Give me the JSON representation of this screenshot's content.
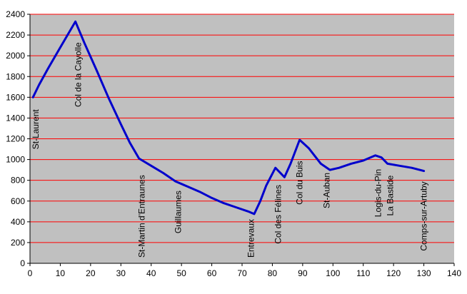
{
  "chart_data": {
    "type": "line",
    "title": "",
    "xlabel": "",
    "ylabel": "",
    "xlim": [
      0,
      140
    ],
    "ylim": [
      0,
      2400
    ],
    "x_ticks": [
      0,
      10,
      20,
      30,
      40,
      50,
      60,
      70,
      80,
      90,
      100,
      110,
      120,
      130,
      140
    ],
    "y_ticks": [
      0,
      200,
      400,
      600,
      800,
      1000,
      1200,
      1400,
      1600,
      1800,
      2000,
      2200,
      2400
    ],
    "grid": "horizontal",
    "legend": "none",
    "series": [
      {
        "x": [
          1,
          3,
          6,
          10,
          15,
          18,
          22,
          26,
          30,
          33,
          36,
          40,
          44,
          48,
          52,
          56,
          60,
          64,
          68,
          72,
          74,
          76,
          78,
          81,
          84,
          86,
          89,
          92,
          96,
          99,
          102,
          106,
          110,
          114,
          116,
          118,
          122,
          126,
          130
        ],
        "y": [
          1600,
          1720,
          1880,
          2080,
          2330,
          2120,
          1860,
          1590,
          1340,
          1160,
          1010,
          940,
          870,
          790,
          740,
          690,
          630,
          580,
          540,
          500,
          475,
          600,
          750,
          920,
          830,
          960,
          1190,
          1110,
          960,
          900,
          920,
          960,
          990,
          1040,
          1020,
          960,
          940,
          920,
          890
        ]
      }
    ],
    "place_labels": [
      {
        "text": "St-Laurent",
        "x": 1
      },
      {
        "text": "Col de la Cayolle",
        "x": 15
      },
      {
        "text": "St-Martin d'Entraunes",
        "x": 36
      },
      {
        "text": "Guillaumes",
        "x": 48
      },
      {
        "text": "Entrevaux",
        "x": 72
      },
      {
        "text": "Col des Félines",
        "x": 81
      },
      {
        "text": "Col du Buis",
        "x": 88
      },
      {
        "text": "St-Auban",
        "x": 97
      },
      {
        "text": "Logis-du-Pin",
        "x": 114
      },
      {
        "text": "La Bastide",
        "x": 118
      },
      {
        "text": "Comps-sur-Artuby",
        "x": 129
      }
    ],
    "colors": {
      "plot_background": "#c0c0c0",
      "gridline": "#ff0000",
      "series_line": "#0000cc",
      "axis": "#000000"
    }
  }
}
